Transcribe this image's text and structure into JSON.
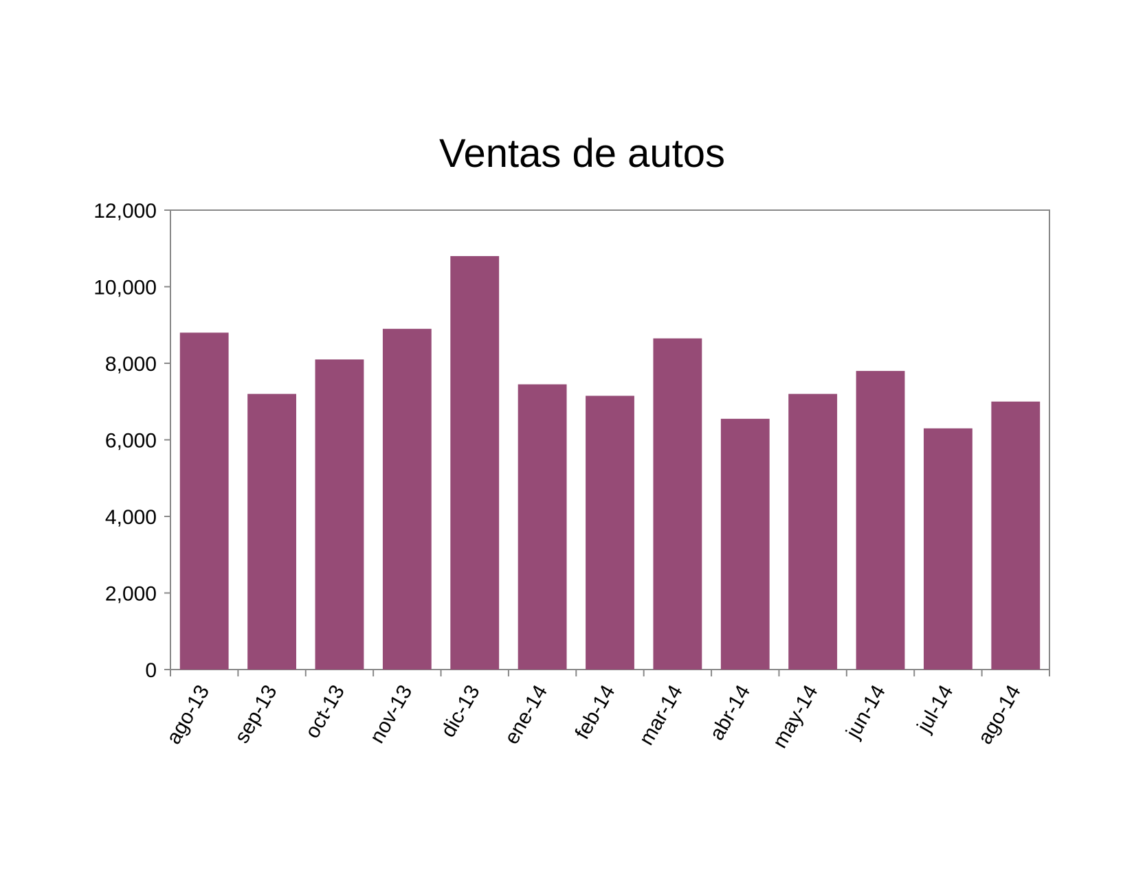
{
  "chart_data": {
    "type": "bar",
    "title": "Ventas de autos",
    "xlabel": "",
    "ylabel": "",
    "categories": [
      "ago-13",
      "sep-13",
      "oct-13",
      "nov-13",
      "dic-13",
      "ene-14",
      "feb-14",
      "mar-14",
      "abr-14",
      "may-14",
      "jun-14",
      "jul-14",
      "ago-14"
    ],
    "values": [
      8800,
      7200,
      8100,
      8900,
      10800,
      7450,
      7150,
      8650,
      6550,
      7200,
      7800,
      6300,
      7000
    ],
    "ylim": [
      0,
      12000
    ],
    "yticks": [
      0,
      2000,
      4000,
      6000,
      8000,
      10000,
      12000
    ],
    "ytick_labels": [
      "0",
      "2,000",
      "4,000",
      "6,000",
      "8,000",
      "10,000",
      "12,000"
    ],
    "grid": false,
    "legend": "none",
    "bar_color": "#964B76"
  }
}
